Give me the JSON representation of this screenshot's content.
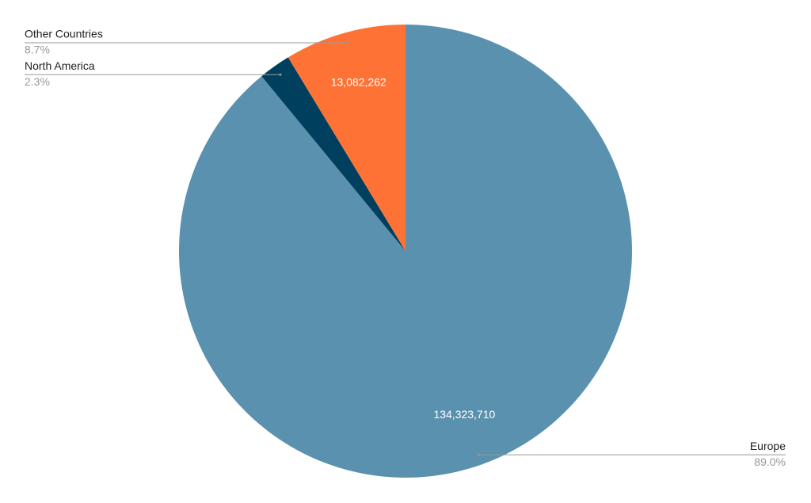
{
  "chart_data": {
    "type": "pie",
    "categories": [
      "Europe",
      "North America",
      "Other Countries"
    ],
    "values": [
      134323710,
      3460000,
      13082262
    ],
    "value_labels": [
      "134,323,710",
      null,
      "13,082,262"
    ],
    "percent_labels": [
      "89.0%",
      "2.3%",
      "8.7%"
    ],
    "colors": [
      "#5a91ae",
      "#00405e",
      "#ff7235"
    ]
  }
}
